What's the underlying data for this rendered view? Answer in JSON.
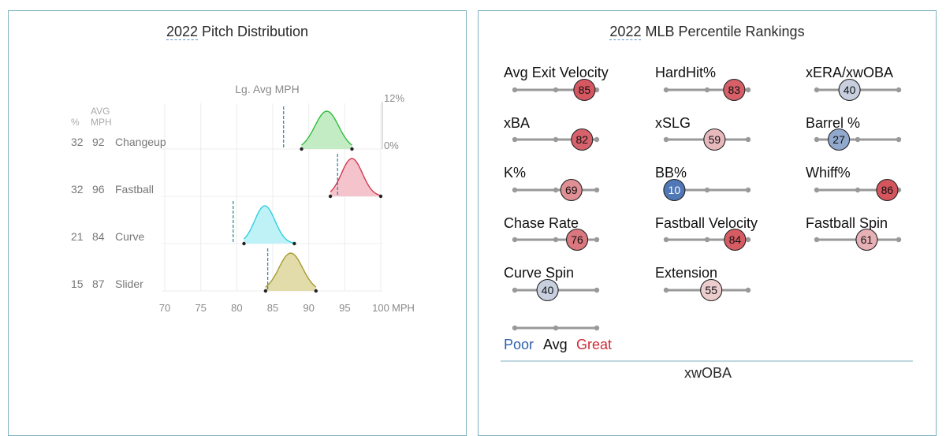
{
  "pitch_panel": {
    "year": "2022",
    "title_rest": " Pitch Distribution",
    "lg_avg_label": "Lg. Avg MPH",
    "col_pct": "%",
    "col_avg_1": "AVG",
    "col_avg_2": "MPH",
    "pct_top_label": "12%",
    "pct_zero_label": "0%",
    "x_unit": "MPH"
  },
  "percentile_panel": {
    "year": "2022",
    "title_rest": " MLB Percentile Rankings",
    "legend": {
      "poor": "Poor",
      "avg": "Avg",
      "great": "Great"
    },
    "footer_label": "xwOBA"
  },
  "colors": {
    "poor": "#2f5fab",
    "avg": "#111111",
    "great": "#cc2a36",
    "track": "#999999",
    "panel_border": "#7fb2bf"
  },
  "chart_data": [
    {
      "type": "area",
      "title": "2022 Pitch Distribution",
      "xlabel": "MPH",
      "xlim": [
        70,
        100
      ],
      "xticks": [
        70,
        75,
        80,
        85,
        90,
        95,
        100
      ],
      "density_range": [
        "0%",
        "12%"
      ],
      "series": [
        {
          "name": "Changeup",
          "pct": 32,
          "avg_mph": 92,
          "min": 89,
          "max": 96,
          "peak": 92.5,
          "lg_avg": 86.5,
          "color": "#2ebd3a",
          "fill": "#c3ecc5"
        },
        {
          "name": "Fastball",
          "pct": 32,
          "avg_mph": 96,
          "min": 93,
          "max": 100,
          "peak": 96,
          "lg_avg": 94,
          "color": "#d23a52",
          "fill": "#f4c3cb"
        },
        {
          "name": "Curve",
          "pct": 21,
          "avg_mph": 84,
          "min": 81,
          "max": 88,
          "peak": 83.9,
          "lg_avg": 79.5,
          "color": "#2ecfe0",
          "fill": "#bff2f7"
        },
        {
          "name": "Slider",
          "pct": 15,
          "avg_mph": 87,
          "min": 84,
          "max": 91,
          "peak": 87.5,
          "lg_avg": 84.3,
          "color": "#a89a2e",
          "fill": "#e2dcaa"
        }
      ]
    },
    {
      "type": "scatter",
      "title": "2022 MLB Percentile Rankings",
      "xlim": [
        0,
        100
      ],
      "metrics": [
        {
          "name": "Avg Exit Velocity",
          "value": 85
        },
        {
          "name": "HardHit%",
          "value": 83
        },
        {
          "name": "xERA/xwOBA",
          "value": 40
        },
        {
          "name": "xBA",
          "value": 82
        },
        {
          "name": "xSLG",
          "value": 59
        },
        {
          "name": "Barrel %",
          "value": 27
        },
        {
          "name": "K%",
          "value": 69
        },
        {
          "name": "BB%",
          "value": 10
        },
        {
          "name": "Whiff%",
          "value": 86
        },
        {
          "name": "Chase Rate",
          "value": 76
        },
        {
          "name": "Fastball Velocity",
          "value": 84
        },
        {
          "name": "Fastball Spin",
          "value": 61
        },
        {
          "name": "Curve Spin",
          "value": 40
        },
        {
          "name": "Extension",
          "value": 55
        }
      ]
    }
  ]
}
